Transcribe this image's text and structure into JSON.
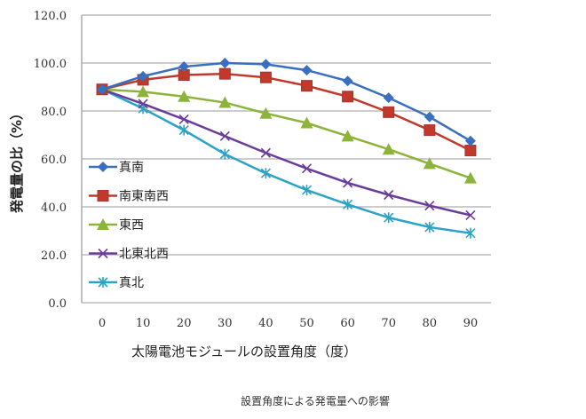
{
  "chart_data": {
    "type": "line",
    "title": "",
    "xlabel": "太陽電池モジュールの設置角度（度）",
    "ylabel": "発電量の比（%）",
    "x": [
      0,
      10,
      20,
      30,
      40,
      50,
      60,
      70,
      80,
      90
    ],
    "x_tick_labels": [
      "0",
      "10",
      "20",
      "30",
      "40",
      "50",
      "60",
      "70",
      "80",
      "90"
    ],
    "ylim": [
      0,
      120
    ],
    "y_ticks": [
      0,
      20,
      40,
      60,
      80,
      100,
      120
    ],
    "y_tick_labels": [
      "0.0",
      "20.0",
      "40.0",
      "60.0",
      "80.0",
      "100.0",
      "120.0"
    ],
    "grid": "horizontal",
    "legend_position": "left-middle",
    "series": [
      {
        "name": "真南",
        "color": "#3a6fbf",
        "marker": "diamond",
        "values": [
          89,
          94.5,
          98.5,
          100,
          99.5,
          97,
          92.5,
          85.5,
          77.5,
          67.5
        ]
      },
      {
        "name": "南東南西",
        "color": "#c0392b",
        "marker": "square",
        "values": [
          89,
          93,
          95,
          95.5,
          94,
          90.5,
          86,
          79.5,
          72,
          63.5
        ]
      },
      {
        "name": "東西",
        "color": "#8cb43a",
        "marker": "triangle",
        "values": [
          89,
          88,
          86,
          83.5,
          79,
          75,
          69.5,
          64,
          58,
          52
        ]
      },
      {
        "name": "北東北西",
        "color": "#6a3d9a",
        "marker": "x",
        "values": [
          89,
          83,
          76.5,
          69.5,
          62.5,
          56,
          50,
          45,
          40.5,
          36.5
        ]
      },
      {
        "name": "真北",
        "color": "#2aa3c7",
        "marker": "star",
        "values": [
          89,
          81,
          72,
          62,
          54,
          47,
          41,
          35.5,
          31.5,
          29
        ]
      }
    ]
  },
  "caption": "設置角度による発電量への影響"
}
